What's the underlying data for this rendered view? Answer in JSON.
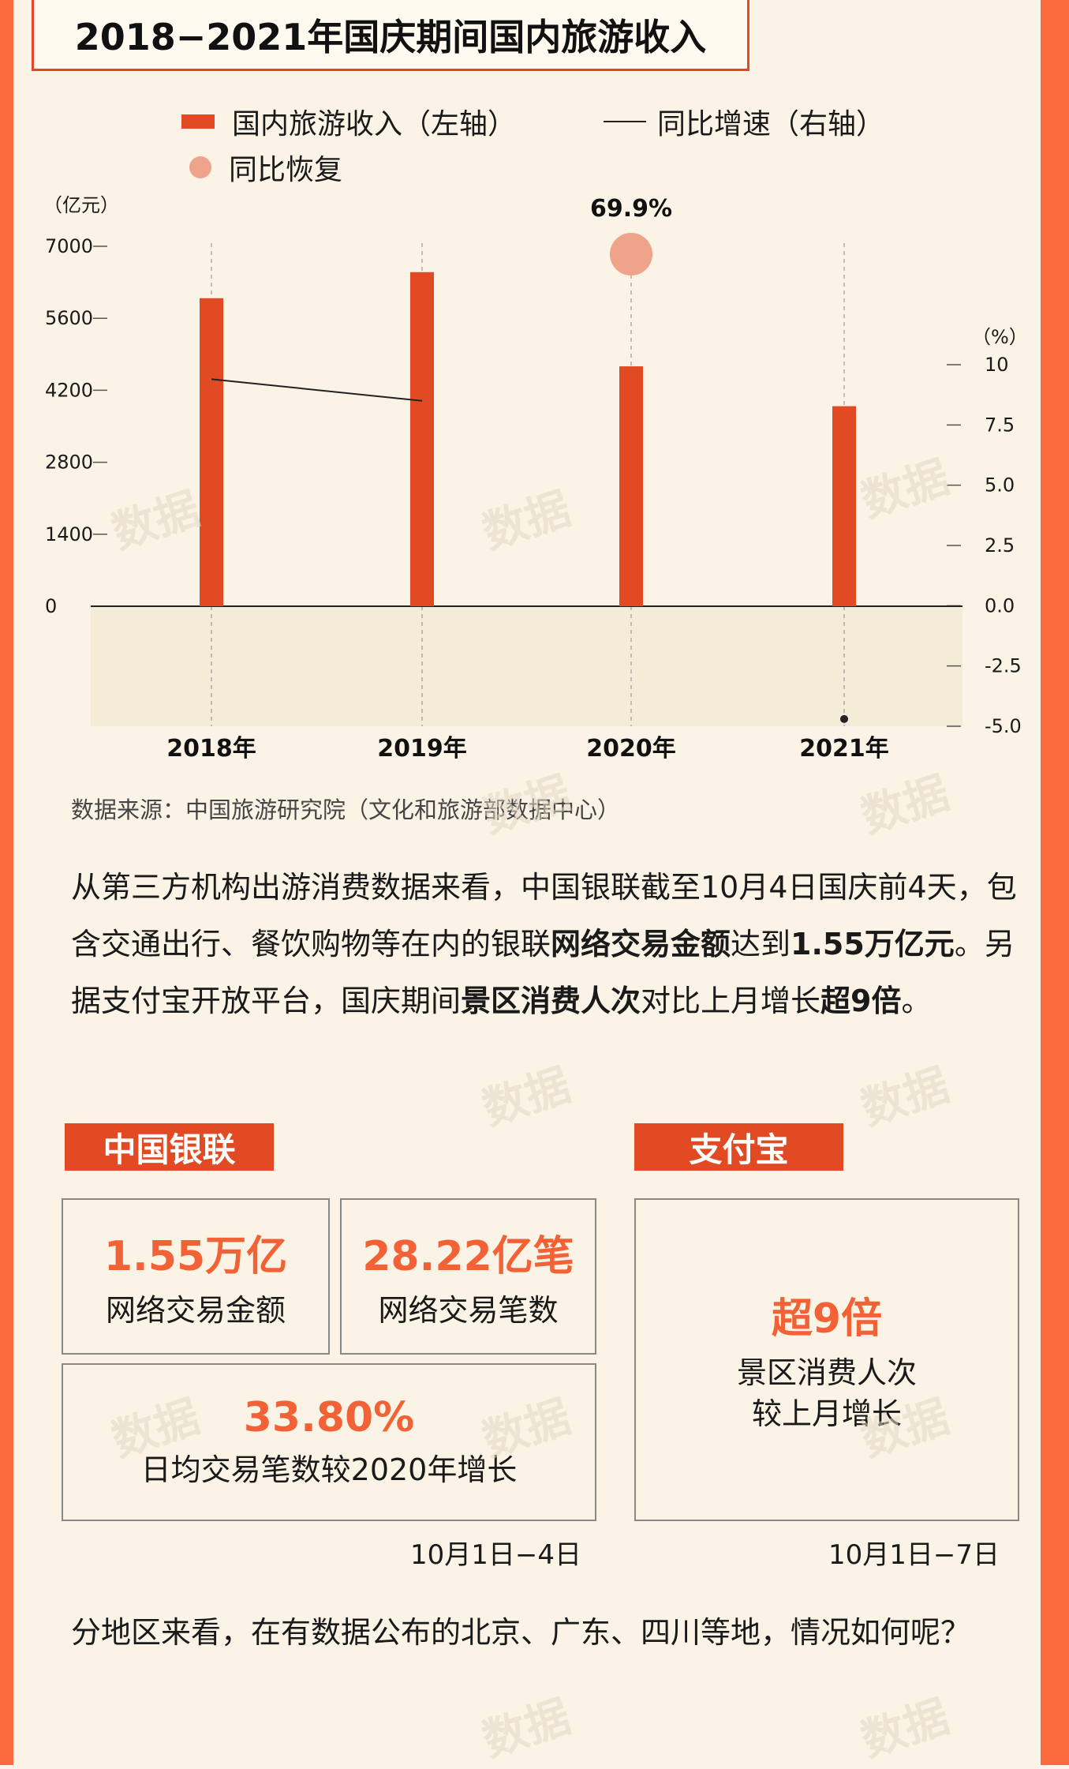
{
  "title": "2018−2021年国庆期间国内旅游收入",
  "legend": {
    "bar": "国内旅游收入（左轴）",
    "line": "同比增速（右轴）",
    "dot": "同比恢复"
  },
  "chart_data": {
    "type": "bar",
    "title": "2018−2021年国庆期间国内旅游收入",
    "categories": [
      "2018年",
      "2019年",
      "2020年",
      "2021年"
    ],
    "series": [
      {
        "name": "国内旅游收入（左轴）",
        "axis": "left",
        "values": [
          5990.8,
          6497.1,
          4665.6,
          3890.6
        ]
      },
      {
        "name": "同比增速（右轴）",
        "axis": "right",
        "type": "line",
        "values": [
          9.4,
          8.5,
          null,
          -4.7
        ]
      },
      {
        "name": "同比恢复",
        "axis": "right",
        "type": "point",
        "category": "2020年",
        "label": "69.9%"
      }
    ],
    "left_axis": {
      "unit": "（亿元）",
      "ticks": [
        "0",
        "1400",
        "2800",
        "4200",
        "5600",
        "7000"
      ],
      "ylim": [
        0,
        7000
      ]
    },
    "right_axis": {
      "unit": "（%）",
      "ticks": [
        "10",
        "7.5",
        "5.0",
        "2.5",
        "0.0",
        "-2.5",
        "-5.0"
      ],
      "ylim": [
        -5,
        10
      ]
    },
    "grid": false,
    "colors": {
      "bar": "#e24a23",
      "line": "#222222",
      "dot": "#eea38a",
      "negative_band": "#f5ecd8"
    }
  },
  "source": "数据来源：中国旅游研究院（文化和旅游部数据中心）",
  "paragraph1": {
    "t1": "从第三方机构出游消费数据来看，中国银联截至10月4日国庆前4天，包含交通出行、餐饮购物等在内的银联",
    "b1": "网络交易金额",
    "t2": "达到",
    "b2": "1.55万亿元",
    "t3": "。另据支付宝开放平台，国庆期间",
    "b3": "景区消费人次",
    "t4": "对比上月增长",
    "b4": "超9倍",
    "t5": "。"
  },
  "unionpay": {
    "tag": "中国银联",
    "cards": [
      {
        "value": "1.55万亿",
        "label": "网络交易金额"
      },
      {
        "value": "28.22亿笔",
        "label": "网络交易笔数"
      },
      {
        "value": "33.80%",
        "label": "日均交易笔数较2020年增长"
      }
    ],
    "date": "10月1日−4日"
  },
  "alipay": {
    "tag": "支付宝",
    "value": "超9倍",
    "label1": "景区消费人次",
    "label2": "较上月增长",
    "date": "10月1日−7日"
  },
  "paragraph2": "分地区来看，在有数据公布的北京、广东、四川等地，情况如何呢？",
  "watermark_icon": "data-wire-logo"
}
